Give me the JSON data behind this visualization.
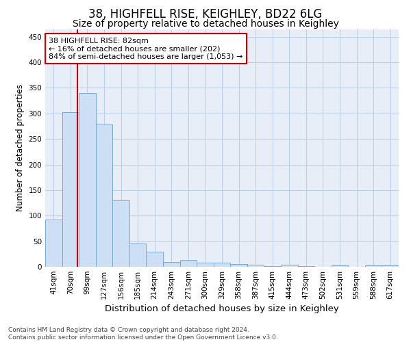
{
  "title_line1": "38, HIGHFELL RISE, KEIGHLEY, BD22 6LG",
  "title_line2": "Size of property relative to detached houses in Keighley",
  "xlabel": "Distribution of detached houses by size in Keighley",
  "ylabel": "Number of detached properties",
  "categories": [
    "41sqm",
    "70sqm",
    "99sqm",
    "127sqm",
    "156sqm",
    "185sqm",
    "214sqm",
    "243sqm",
    "271sqm",
    "300sqm",
    "329sqm",
    "358sqm",
    "387sqm",
    "415sqm",
    "444sqm",
    "473sqm",
    "502sqm",
    "531sqm",
    "559sqm",
    "588sqm",
    "617sqm"
  ],
  "values": [
    92,
    303,
    340,
    278,
    130,
    46,
    30,
    9,
    13,
    8,
    8,
    5,
    4,
    1,
    4,
    1,
    0,
    3,
    0,
    3,
    3
  ],
  "bar_color": "#ccdff5",
  "bar_edge_color": "#7aaad0",
  "vline_x": 1.41,
  "vline_color": "#cc0000",
  "annotation_text": "38 HIGHFELL RISE: 82sqm\n← 16% of detached houses are smaller (202)\n84% of semi-detached houses are larger (1,053) →",
  "annotation_box_color": "#ffffff",
  "annotation_box_edge": "#cc0000",
  "ylim": [
    0,
    465
  ],
  "yticks": [
    0,
    50,
    100,
    150,
    200,
    250,
    300,
    350,
    400,
    450
  ],
  "grid_color": "#bdd0e8",
  "bg_color": "#e8eef8",
  "footer_text": "Contains HM Land Registry data © Crown copyright and database right 2024.\nContains public sector information licensed under the Open Government Licence v3.0.",
  "title_fontsize": 12,
  "subtitle_fontsize": 10,
  "xlabel_fontsize": 9.5,
  "ylabel_fontsize": 8.5,
  "tick_fontsize": 7.5,
  "annotation_fontsize": 8,
  "footer_fontsize": 6.5
}
